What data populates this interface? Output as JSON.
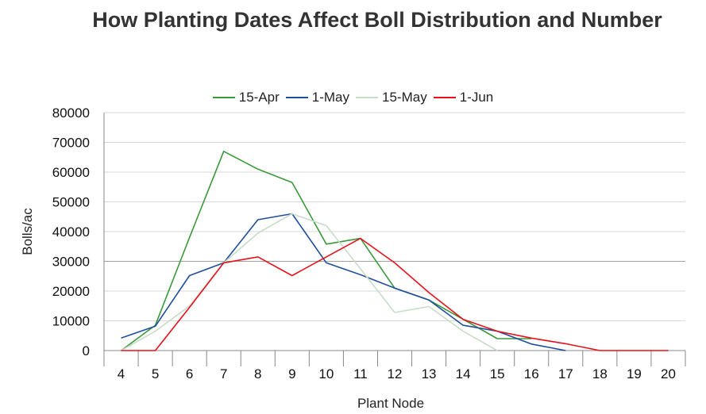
{
  "chart_data": {
    "type": "line",
    "title": "How Planting Dates Affect Boll Distribution and Number",
    "xlabel": "Plant Node",
    "ylabel": "Bolls/ac",
    "x": [
      4,
      5,
      6,
      7,
      8,
      9,
      10,
      11,
      12,
      13,
      14,
      15,
      16,
      17,
      18,
      19,
      20
    ],
    "ylim": [
      0,
      80000
    ],
    "yticks": [
      "0",
      "10000",
      "20000",
      "30000",
      "40000",
      "50000",
      "60000",
      "70000",
      "80000"
    ],
    "legend_position": "top",
    "grid": "horizontal",
    "series": [
      {
        "name": "15-Apr",
        "color": "#3a9a3a",
        "values": [
          0,
          8500,
          38000,
          67000,
          61000,
          56500,
          35800,
          37700,
          21000,
          17000,
          10500,
          4000,
          4000,
          null,
          null,
          null,
          null
        ]
      },
      {
        "name": "1-May",
        "color": "#1f4e9c",
        "values": [
          4200,
          8200,
          25200,
          29500,
          44000,
          46000,
          29500,
          25500,
          21000,
          17000,
          8500,
          6500,
          2200,
          0,
          null,
          null,
          null
        ]
      },
      {
        "name": "15-May",
        "color": "#c8ddc8",
        "values": [
          0,
          6500,
          15000,
          29500,
          39500,
          46000,
          42000,
          27500,
          12800,
          14800,
          6500,
          0,
          null,
          null,
          null,
          null,
          null
        ]
      },
      {
        "name": "1-Jun",
        "color": "#e8111b",
        "values": [
          0,
          0,
          14500,
          29500,
          31500,
          25200,
          31500,
          37700,
          29500,
          19500,
          10500,
          6500,
          4200,
          2300,
          0,
          0,
          0
        ]
      }
    ]
  }
}
